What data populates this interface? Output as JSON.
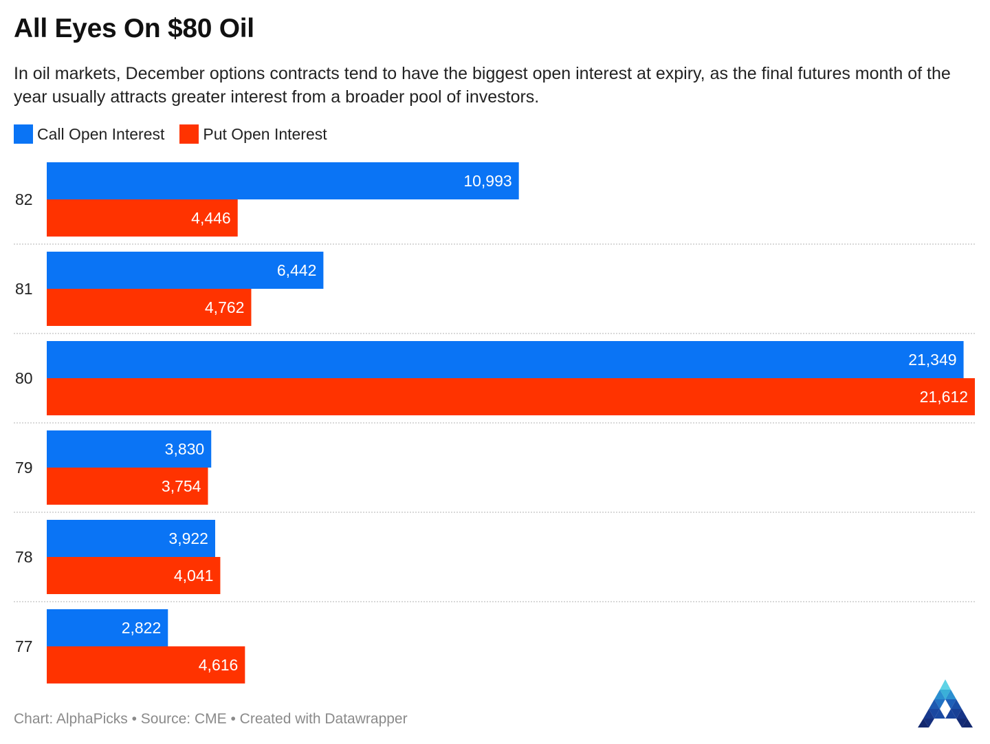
{
  "header": {
    "title": "All Eyes On $80 Oil",
    "subtitle": "In oil markets, December options contracts tend to have the biggest open interest at expiry, as the final futures month of the year usually attracts greater interest from a broader pool of investors."
  },
  "footer": {
    "text": "Chart: AlphaPicks • Source: CME • Created with Datawrapper"
  },
  "colors": {
    "call": "#0a74f5",
    "put": "#ff3300",
    "grid": "#cccccc",
    "label": "#ffffff"
  },
  "logo": {
    "icon": "alphapicks-triangle-logo-icon"
  },
  "chart_data": {
    "type": "bar",
    "orientation": "horizontal",
    "grouped": true,
    "title": "All Eyes On $80 Oil",
    "xlabel": "",
    "ylabel": "",
    "xlim": [
      0,
      21612
    ],
    "grid": "separators-between-groups",
    "legend": "top-left",
    "categories": [
      "82",
      "81",
      "80",
      "79",
      "78",
      "77"
    ],
    "series": [
      {
        "name": "Call Open Interest",
        "values": [
          10993,
          6442,
          21349,
          3830,
          3922,
          2822
        ],
        "labels": [
          "10,993",
          "6,442",
          "21,349",
          "3,830",
          "3,922",
          "2,822"
        ]
      },
      {
        "name": "Put Open Interest",
        "values": [
          4446,
          4762,
          21612,
          3754,
          4041,
          4616
        ],
        "labels": [
          "4,446",
          "4,762",
          "21,612",
          "3,754",
          "4,041",
          "4,616"
        ]
      }
    ]
  }
}
